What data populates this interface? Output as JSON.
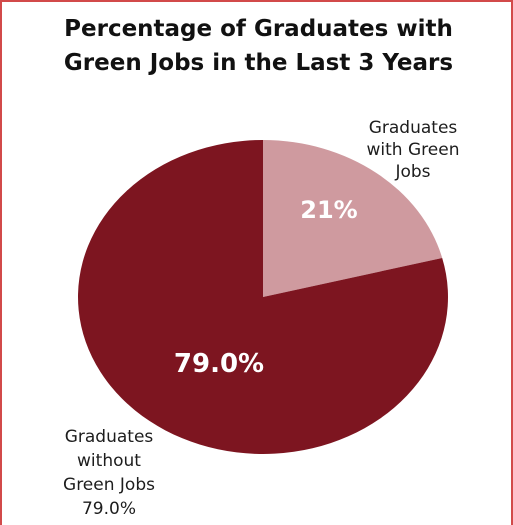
{
  "chart_data": {
    "type": "pie",
    "title": [
      "Percentage of Graduates with",
      "Green Jobs in the Last 3 Years"
    ],
    "slices": [
      {
        "label_lines": [
          "Graduates",
          "with Green",
          "Jobs"
        ],
        "value": 21,
        "value_label": "21%",
        "color": "#cf9a9f"
      },
      {
        "label_lines": [
          "Graduates",
          "without",
          "Green Jobs",
          "79.0%"
        ],
        "value": 79.0,
        "value_label": "79.0%",
        "color": "#7d1520"
      }
    ],
    "start_angle_deg": 0,
    "direction": "clockwise",
    "legend": "none"
  }
}
